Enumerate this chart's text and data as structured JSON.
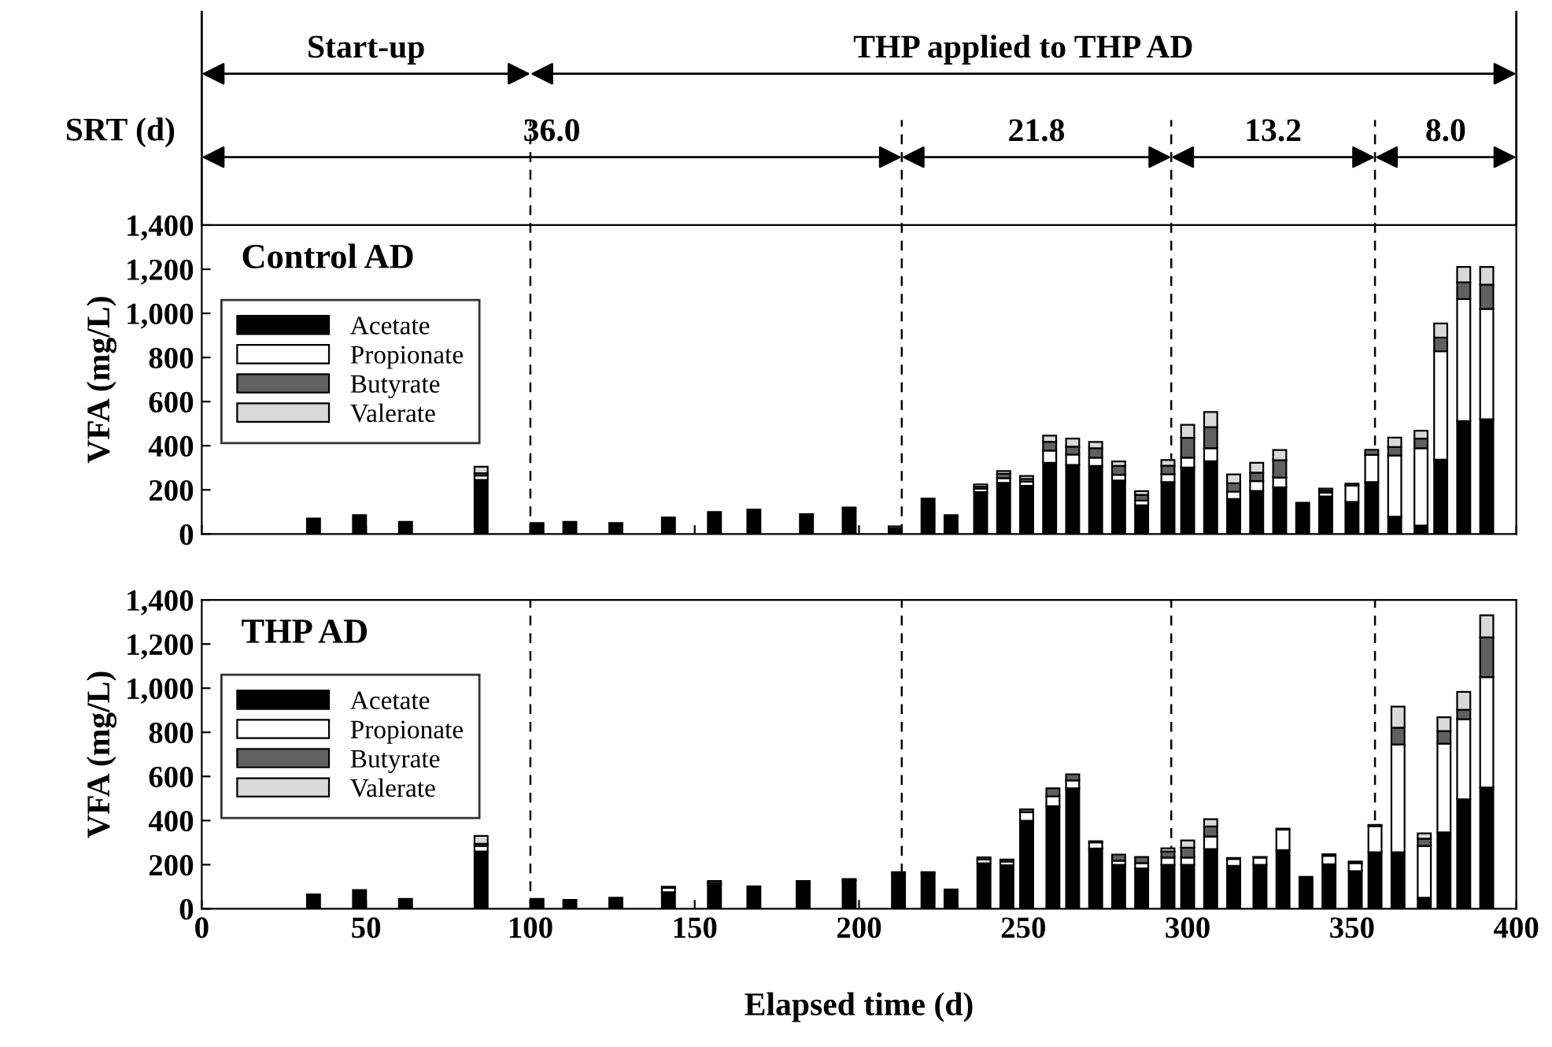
{
  "chart_data": [
    {
      "type": "bar",
      "title": "Control AD",
      "ylabel": "VFA (mg/L)",
      "stacked": true,
      "legend": "top left",
      "grid": false,
      "tick_labels": "y",
      "x": [
        34,
        48,
        62,
        85,
        102,
        112,
        126,
        142,
        156,
        168,
        184,
        197,
        211,
        221,
        228,
        237,
        244,
        251,
        258,
        265,
        272,
        279,
        286,
        294,
        300,
        307,
        314,
        321,
        328,
        335,
        342,
        350,
        356,
        363,
        371,
        377,
        384,
        391
      ],
      "series": [
        {
          "name": "Acetate",
          "color": "#000000",
          "values": [
            70,
            85,
            55,
            245,
            50,
            55,
            50,
            75,
            100,
            110,
            90,
            120,
            25,
            160,
            85,
            190,
            232,
            218,
            323,
            313,
            308,
            242,
            130,
            235,
            301,
            330,
            159,
            195,
            211,
            142,
            170,
            145,
            235,
            78,
            38,
            337,
            512,
            520
          ]
        },
        {
          "name": "Propionate",
          "color": "#ffffff",
          "values": [
            null,
            null,
            null,
            20,
            null,
            null,
            null,
            null,
            null,
            null,
            null,
            null,
            null,
            null,
            null,
            15,
            21,
            19,
            55,
            47,
            38,
            26,
            21,
            36,
            45,
            59,
            33,
            45,
            45,
            null,
            17,
            74,
            123,
            278,
            351,
            491,
            553,
            500
          ]
        },
        {
          "name": "Butyrate",
          "color": "#606060",
          "values": [
            null,
            null,
            null,
            10,
            null,
            null,
            null,
            null,
            null,
            null,
            null,
            null,
            10,
            null,
            null,
            10,
            20,
            13,
            40,
            36,
            43,
            40,
            26,
            38,
            90,
            95,
            38,
            38,
            78,
            null,
            10,
            9,
            24,
            38,
            43,
            62,
            76,
            110
          ]
        },
        {
          "name": "Valerate",
          "color": "#d9d9d9",
          "values": [
            null,
            null,
            null,
            30,
            null,
            null,
            null,
            null,
            null,
            null,
            null,
            null,
            null,
            null,
            null,
            10,
            12,
            13,
            28,
            36,
            28,
            21,
            17,
            26,
            59,
            69,
            40,
            45,
            47,
            null,
            9,
            null,
            null,
            43,
            36,
            64,
            69,
            80
          ]
        }
      ],
      "xlim": [
        0,
        400
      ],
      "xticks": [
        0,
        50,
        100,
        150,
        200,
        250,
        300,
        350,
        400
      ],
      "ylim": [
        0,
        1400
      ],
      "yticks": [
        0,
        200,
        400,
        600,
        800,
        {
          "value": 1000,
          "label": "1,000"
        },
        {
          "value": 1200,
          "label": "1,200"
        },
        {
          "value": 1400,
          "label": "1,400"
        }
      ],
      "ref_lines": [
        {
          "axis": "x",
          "value": 100,
          "line_style": "dashed"
        },
        {
          "axis": "x",
          "value": 213,
          "line_style": "dashed"
        },
        {
          "axis": "x",
          "value": 295,
          "line_style": "dashed"
        },
        {
          "axis": "x",
          "value": 357,
          "line_style": "dashed"
        }
      ],
      "annotations": [
        "Start-up",
        "THP applied to THP AD",
        "SRT (d)",
        "36.0",
        "21.8",
        "13.2",
        "8.0"
      ]
    },
    {
      "type": "bar",
      "title": "THP AD",
      "ylabel": "VFA (mg/L)",
      "xlabel": "Elapsed time (d)",
      "stacked": true,
      "legend": "top left",
      "grid": false,
      "x": [
        34,
        48,
        62,
        85,
        102,
        112,
        126,
        142,
        156,
        168,
        183,
        197,
        212,
        221,
        228,
        238,
        245,
        251,
        259,
        265,
        272,
        279,
        286,
        294,
        300,
        307,
        314,
        322,
        329,
        336,
        343,
        351,
        357,
        364,
        372,
        378,
        384,
        391
      ],
      "series": [
        {
          "name": "Acetate",
          "color": "#000000",
          "values": [
            65,
            85,
            45,
            260,
            45,
            40,
            50,
            75,
            107,
            102,
            126,
            128,
            160,
            160,
            88,
            206,
            197,
            399,
            465,
            546,
            273,
            199,
            183,
            199,
            199,
            271,
            195,
            199,
            266,
            145,
            202,
            171,
            256,
            256,
            50,
            346,
            496,
            550
          ]
        },
        {
          "name": "Propionate",
          "color": "#ffffff",
          "values": [
            null,
            null,
            null,
            25,
            null,
            null,
            null,
            20,
            null,
            null,
            null,
            null,
            null,
            null,
            null,
            17,
            17,
            38,
            45,
            36,
            28,
            19,
            24,
            33,
            33,
            57,
            31,
            33,
            93,
            null,
            38,
            36,
            119,
            489,
            235,
            403,
            363,
            500
          ]
        },
        {
          "name": "Butyrate",
          "color": "#606060",
          "values": [
            null,
            null,
            null,
            10,
            null,
            null,
            null,
            5,
            10,
            null,
            null,
            7,
            6,
            6,
            null,
            10,
            9,
            14,
            36,
            28,
            5,
            28,
            28,
            28,
            45,
            45,
            4,
            3,
            4,
            null,
            7,
            7,
            5,
            76,
            33,
            57,
            43,
            180
          ]
        },
        {
          "name": "Valerate",
          "color": "#d9d9d9",
          "values": [
            null,
            null,
            null,
            35,
            null,
            null,
            null,
            null,
            9,
            null,
            null,
            null,
            null,
            null,
            null,
            null,
            null,
            null,
            null,
            null,
            null,
            null,
            null,
            14,
            33,
            33,
            null,
            null,
            null,
            null,
            null,
            null,
            null,
            95,
            24,
            62,
            81,
            100
          ]
        }
      ],
      "xlim": [
        0,
        400
      ],
      "xticks": [
        0,
        50,
        100,
        150,
        200,
        250,
        300,
        350,
        400
      ],
      "ylim": [
        0,
        1400
      ],
      "yticks": [
        0,
        200,
        400,
        600,
        800,
        {
          "value": 1000,
          "label": "1,000"
        },
        {
          "value": 1200,
          "label": "1,200"
        },
        {
          "value": 1400,
          "label": "1,400"
        }
      ],
      "ref_lines": [
        {
          "axis": "x",
          "value": 100,
          "line_style": "dashed"
        },
        {
          "axis": "x",
          "value": 213,
          "line_style": "dashed"
        },
        {
          "axis": "x",
          "value": 295,
          "line_style": "dashed"
        },
        {
          "axis": "x",
          "value": 357,
          "line_style": "dashed"
        }
      ]
    }
  ]
}
